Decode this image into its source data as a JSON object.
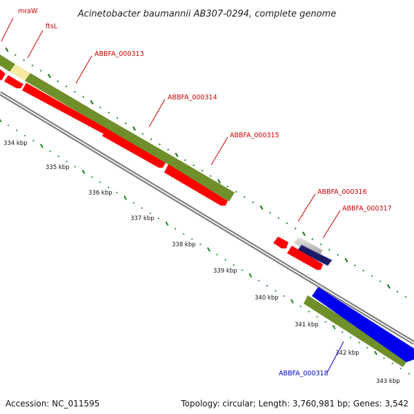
{
  "title": "Acinetobacter baumannii AB307-0294, complete genome",
  "footer": {
    "accession": "Accession: NC_011595",
    "summary": "Topology: circular; Length: 3,760,981 bp; Genes: 3,542"
  },
  "colors": {
    "backbone": "#8c8c8c",
    "outer_ticks": "#1f7a1f",
    "inner_ticks": "#2f8f2f",
    "cds_olive": "#6f8f2a",
    "cds_pale": "#f3eaa4",
    "cds_red": "#ff0000",
    "cds_navy": "#1a1a66",
    "cds_blue": "#0000ee",
    "label_red": "#cc0000",
    "label_blue": "#0000cc"
  },
  "scale_labels": [
    "334 kbp",
    "335 kbp",
    "336 kbp",
    "337 kbp",
    "338 kbp",
    "339 kbp",
    "340 kbp",
    "341 kbp",
    "342 kbp",
    "343 kbp"
  ],
  "features": [
    {
      "label": "mraW",
      "color": "red",
      "track": "olive"
    },
    {
      "label": "ftsL",
      "color": "red",
      "track": "pale"
    },
    {
      "label": "ABBFA_000313",
      "color": "red",
      "track": "olive"
    },
    {
      "label": "ABBFA_000314",
      "color": "red",
      "track": "olive"
    },
    {
      "label": "ABBFA_000315",
      "color": "red",
      "track": "olive"
    },
    {
      "label": "ABBFA_000316",
      "color": "red",
      "track": "grey"
    },
    {
      "label": "ABBFA_000317",
      "color": "red",
      "track": "navy"
    },
    {
      "label": "ABBFA_000318",
      "color": "blue",
      "track": "blue"
    }
  ]
}
